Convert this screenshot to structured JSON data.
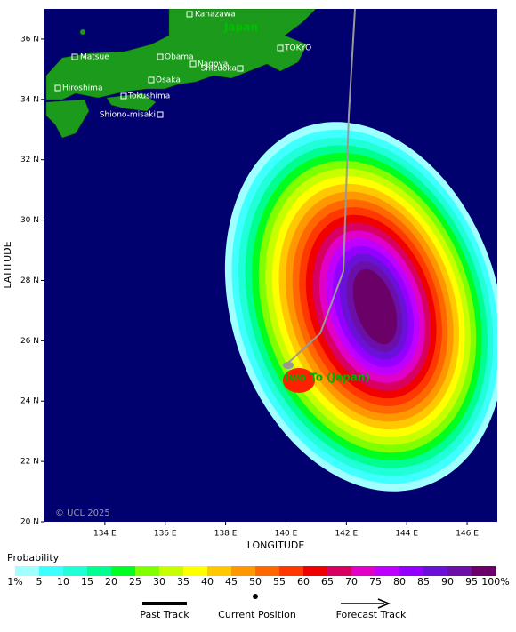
{
  "map": {
    "xlabel": "LONGITUDE",
    "ylabel": "LATITUDE",
    "xlim": [
      132,
      147
    ],
    "ylim": [
      20,
      37
    ],
    "xticks": [
      {
        "value": 134,
        "label": "134 E"
      },
      {
        "value": 136,
        "label": "136 E"
      },
      {
        "value": 138,
        "label": "138 E"
      },
      {
        "value": 140,
        "label": "140 E"
      },
      {
        "value": 142,
        "label": "142 E"
      },
      {
        "value": 144,
        "label": "144 E"
      },
      {
        "value": 146,
        "label": "146 E"
      }
    ],
    "yticks": [
      {
        "value": 20,
        "label": "20 N"
      },
      {
        "value": 22,
        "label": "22 N"
      },
      {
        "value": 24,
        "label": "24 N"
      },
      {
        "value": 26,
        "label": "26 N"
      },
      {
        "value": 28,
        "label": "28 N"
      },
      {
        "value": 30,
        "label": "30 N"
      },
      {
        "value": 32,
        "label": "32 N"
      },
      {
        "value": 34,
        "label": "34 N"
      },
      {
        "value": 36,
        "label": "36 N"
      }
    ],
    "country": "Japan",
    "places": [
      "Kanazawa",
      "Matsue",
      "Obama",
      "TOKYO",
      "Nagoya",
      "Shizuoka",
      "Osaka",
      "Hiroshima",
      "Tokushima",
      "Shiono-misaki"
    ],
    "storm_label": "Iwo To (Japan)",
    "copyright": "© UCL 2025"
  },
  "legend": {
    "title": "Probability",
    "labels": [
      "1%",
      "5",
      "10",
      "15",
      "20",
      "25",
      "30",
      "35",
      "40",
      "45",
      "50",
      "55",
      "60",
      "65",
      "70",
      "75",
      "80",
      "85",
      "90",
      "95",
      "100%"
    ],
    "colors": [
      "#a0ffff",
      "#40ffff",
      "#20ffd8",
      "#00ff90",
      "#00ff20",
      "#80ff00",
      "#c8ff00",
      "#ffff00",
      "#ffc800",
      "#ff9800",
      "#ff6800",
      "#ff3800",
      "#f00000",
      "#d80060",
      "#e000c8",
      "#c000ff",
      "#9400ff",
      "#6a10d8",
      "#6a10a8",
      "#6a0068"
    ]
  },
  "key": [
    "Past Track",
    "Current Position",
    "Forecast Track"
  ]
}
